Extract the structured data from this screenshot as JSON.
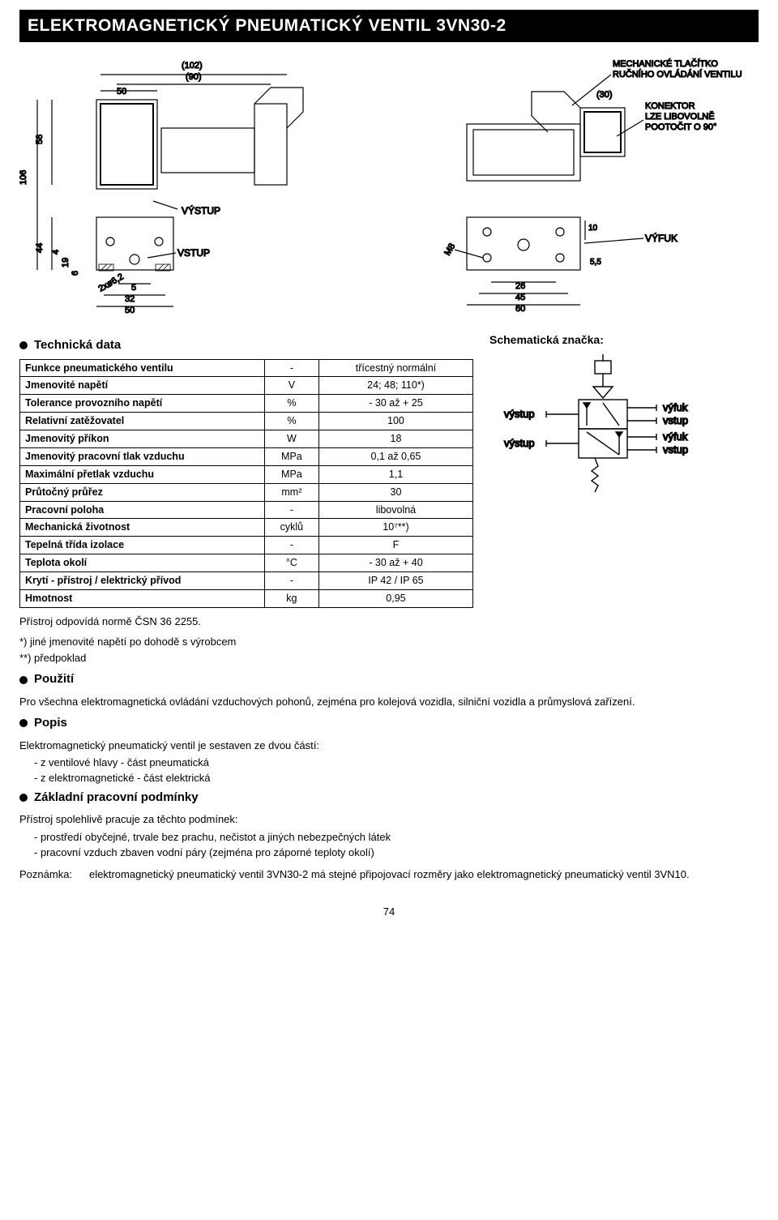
{
  "title": "ELEKTROMAGNETICKÝ PNEUMATICKÝ VENTIL 3VN30-2",
  "diagram": {
    "front": {
      "labels": [
        "MECHANICKÉ TLAČÍTKO",
        "RUČNÍHO OVLÁDÁNÍ VENTILU",
        "(102)",
        "(90)",
        "50",
        "58",
        "106",
        "44",
        "4",
        "19",
        "6",
        "2xø6,2",
        "VÝSTUP",
        "VSTUP",
        "5",
        "32",
        "50"
      ]
    },
    "side": {
      "labels": [
        "(30)",
        "KONEKTOR",
        "LZE LIBOVOLNĚ",
        "POOTOČIT O 90°",
        "VÝFUK",
        "M8",
        "10",
        "5,5",
        "26",
        "45",
        "60"
      ]
    }
  },
  "sections": {
    "tech_heading": "Technická data",
    "schem_heading": "Schematická značka:",
    "schem_labels": {
      "vystup": "výstup",
      "vyfuk": "výfuk",
      "vstup": "vstup"
    },
    "norm_line": "Přístroj odpovídá normě ČSN 36 2255.",
    "foot1": "*) jiné jmenovité napětí po dohodě s výrobcem",
    "foot2": "**) předpoklad",
    "use_heading": "Použití",
    "use_text": "Pro všechna elektromagnetická ovládání vzduchových pohonů, zejména pro kolejová vozidla, silniční vozidla a průmyslová zařízení.",
    "desc_heading": "Popis",
    "desc_intro": "Elektromagnetický pneumatický ventil je sestaven ze dvou částí:",
    "desc_items": [
      "- z ventilové hlavy - část pneumatická",
      "- z elektromagnetické - část elektrická"
    ],
    "cond_heading": "Základní pracovní podmínky",
    "cond_intro": "Přístroj spolehlivě pracuje za těchto podmínek:",
    "cond_items": [
      "- prostředí obyčejné, trvale bez prachu, nečistot a jiných nebezpečných látek",
      "- pracovní vzduch zbaven vodní páry (zejména pro záporné teploty okolí)"
    ],
    "note_label": "Poznámka:",
    "note_text": "elektromagnetický pneumatický ventil 3VN30-2 má stejné připojovací rozměry jako elektromagnetický pneumatický ventil 3VN10.",
    "page_number": "74"
  },
  "table": {
    "rows": [
      [
        "Funkce pneumatického ventilu",
        "-",
        "třícestný normální"
      ],
      [
        "Jmenovité napětí",
        "V",
        "24; 48; 110*)"
      ],
      [
        "Tolerance provozního napětí",
        "%",
        "- 30 až + 25"
      ],
      [
        "Relativní zatěžovatel",
        "%",
        "100"
      ],
      [
        "Jmenovitý příkon",
        "W",
        "18"
      ],
      [
        "Jmenovitý pracovní tlak vzduchu",
        "MPa",
        "0,1 až 0,65"
      ],
      [
        "Maximální přetlak vzduchu",
        "MPa",
        "1,1"
      ],
      [
        "Průtočný průřez",
        "mm²",
        "30"
      ],
      [
        "Pracovní poloha",
        "-",
        "libovolná"
      ],
      [
        "Mechanická životnost",
        "cyklů",
        "10⁷**)"
      ],
      [
        "Tepelná třída izolace",
        "-",
        "F"
      ],
      [
        "Teplota okolí",
        "°C",
        "- 30 až + 40"
      ],
      [
        "Krytí - přístroj / elektrický přívod",
        "-",
        "IP 42 / IP 65"
      ],
      [
        "Hmotnost",
        "kg",
        "0,95"
      ]
    ]
  },
  "colors": {
    "title_bg": "#000000",
    "title_fg": "#ffffff",
    "border": "#000000",
    "text": "#000000",
    "bg": "#ffffff"
  }
}
